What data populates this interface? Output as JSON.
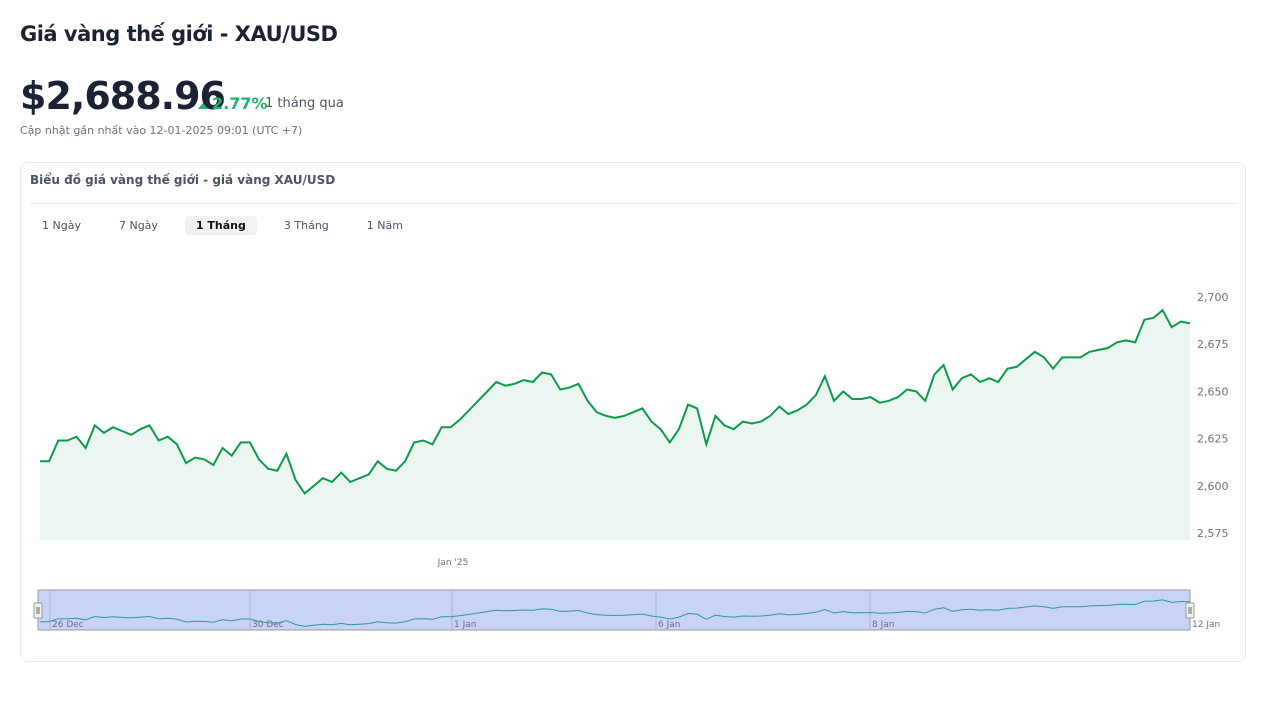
{
  "header": {
    "title": "Giá vàng thế giới - XAU/USD",
    "price": "$2,688.96",
    "change": "2.77%",
    "period": "1 tháng qua",
    "updated": "Cập nhật gần nhất vào 12-01-2025 09:01 (UTC +7)"
  },
  "card": {
    "title": "Biểu đồ giá vàng thế giới - giá vàng XAU/USD",
    "tabs": [
      {
        "label": "1 Ngày"
      },
      {
        "label": "7 Ngày"
      },
      {
        "label": "1 Tháng",
        "active": true
      },
      {
        "label": "3 Tháng"
      },
      {
        "label": "1 Năm"
      }
    ]
  },
  "colors": {
    "line": "#0e9a4e",
    "fill": "#eaf6ef",
    "up": "#1db56c",
    "navigator_mask": "#c9d2f7",
    "navigator_line": "#2f9a96"
  },
  "chart_data": {
    "type": "area",
    "ylim": [
      2575,
      2700
    ],
    "yticks": [
      "2,575",
      "2,600",
      "2,625",
      "2,650",
      "2,675",
      "2,700"
    ],
    "xticks": [
      "Jan '25"
    ],
    "navigator_ticks": [
      "26 Dec",
      "30 Dec",
      "1 Jan",
      "6 Jan",
      "8 Jan",
      "12 Jan"
    ],
    "values": [
      2613,
      2613,
      2624,
      2624,
      2626,
      2620,
      2632,
      2628,
      2631,
      2629,
      2627,
      2630,
      2632,
      2624,
      2626,
      2622,
      2612,
      2615,
      2614,
      2611,
      2620,
      2616,
      2623,
      2623,
      2614,
      2609,
      2608,
      2617,
      2603,
      2596,
      2600,
      2604,
      2602,
      2607,
      2602,
      2604,
      2606,
      2613,
      2609,
      2608,
      2613,
      2623,
      2624,
      2622,
      2631,
      2631,
      2635,
      2640,
      2645,
      2650,
      2655,
      2653,
      2654,
      2656,
      2655,
      2660,
      2659,
      2651,
      2652,
      2654,
      2645,
      2639,
      2637,
      2636,
      2637,
      2639,
      2641,
      2634,
      2630,
      2623,
      2630,
      2643,
      2641,
      2622,
      2637,
      2632,
      2630,
      2634,
      2633,
      2634,
      2637,
      2642,
      2638,
      2640,
      2643,
      2648,
      2658,
      2645,
      2650,
      2646,
      2646,
      2647,
      2644,
      2645,
      2647,
      2651,
      2650,
      2645,
      2659,
      2664,
      2651,
      2657,
      2659,
      2655,
      2657,
      2655,
      2662,
      2663,
      2667,
      2671,
      2668,
      2662,
      2668,
      2668,
      2668,
      2671,
      2672,
      2673,
      2676,
      2677,
      2676,
      2688,
      2689,
      2693,
      2684,
      2687,
      2686
    ]
  }
}
